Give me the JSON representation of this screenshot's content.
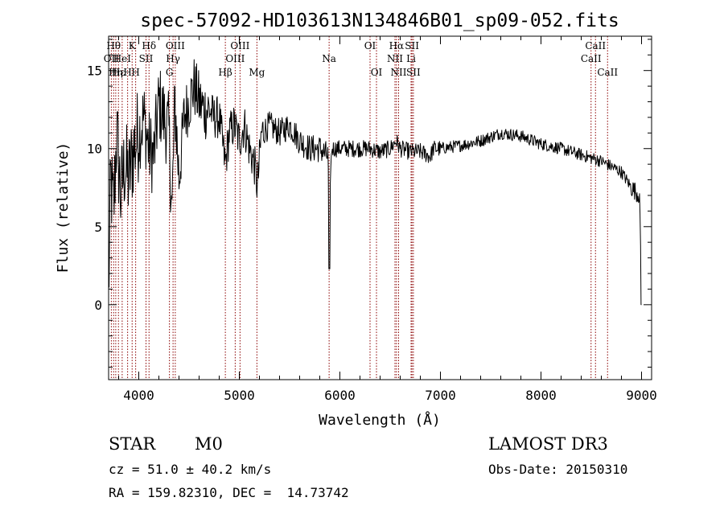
{
  "chart_data": {
    "type": "line",
    "title": "spec-57092-HD103613N134846B01_sp09-052.fits",
    "xlabel": "Wavelength (Å)",
    "ylabel": "Flux (relative)",
    "xlim": [
      3700,
      9100
    ],
    "ylim": [
      -4.8,
      17.2
    ],
    "xticks": [
      4000,
      5000,
      6000,
      7000,
      8000,
      9000
    ],
    "xtick_labels": [
      "4000",
      "5000",
      "6000",
      "7000",
      "8000",
      "9000"
    ],
    "yticks": [
      0,
      5,
      10,
      15
    ],
    "ytick_labels": [
      "0",
      "5",
      "10",
      "15"
    ],
    "grid": false,
    "line_color": "#000000",
    "marker_color": "#8b0000",
    "spectrum_anchors": [
      [
        3700,
        0.5
      ],
      [
        3720,
        8
      ],
      [
        3750,
        6
      ],
      [
        3780,
        11
      ],
      [
        3820,
        7
      ],
      [
        3860,
        9
      ],
      [
        3900,
        8
      ],
      [
        3950,
        10
      ],
      [
        4000,
        11
      ],
      [
        4050,
        12
      ],
      [
        4100,
        10
      ],
      [
        4150,
        9.5
      ],
      [
        4200,
        13
      ],
      [
        4250,
        12
      ],
      [
        4300,
        11
      ],
      [
        4330,
        6
      ],
      [
        4360,
        13
      ],
      [
        4400,
        8
      ],
      [
        4450,
        12
      ],
      [
        4500,
        13
      ],
      [
        4550,
        14
      ],
      [
        4600,
        13
      ],
      [
        4650,
        12.5
      ],
      [
        4700,
        12.5
      ],
      [
        4750,
        12
      ],
      [
        4800,
        12
      ],
      [
        4860,
        9
      ],
      [
        4900,
        11
      ],
      [
        4950,
        11.5
      ],
      [
        5000,
        10.5
      ],
      [
        5050,
        11.5
      ],
      [
        5100,
        10
      ],
      [
        5150,
        9
      ],
      [
        5180,
        7.5
      ],
      [
        5220,
        11
      ],
      [
        5300,
        11.5
      ],
      [
        5400,
        11
      ],
      [
        5500,
        11.5
      ],
      [
        5600,
        10.5
      ],
      [
        5700,
        10
      ],
      [
        5800,
        10
      ],
      [
        5880,
        9.5
      ],
      [
        5895,
        7
      ],
      [
        5920,
        10
      ],
      [
        6000,
        10
      ],
      [
        6100,
        10
      ],
      [
        6200,
        10
      ],
      [
        6300,
        10
      ],
      [
        6400,
        9.8
      ],
      [
        6500,
        10
      ],
      [
        6560,
        10.5
      ],
      [
        6600,
        10
      ],
      [
        6700,
        9.8
      ],
      [
        6800,
        9.8
      ],
      [
        6900,
        9.5
      ],
      [
        6930,
        10
      ],
      [
        7000,
        10
      ],
      [
        7200,
        10.2
      ],
      [
        7400,
        10.5
      ],
      [
        7600,
        11
      ],
      [
        7800,
        10.8
      ],
      [
        8000,
        10.3
      ],
      [
        8200,
        10
      ],
      [
        8400,
        9.6
      ],
      [
        8600,
        9.2
      ],
      [
        8800,
        8.5
      ],
      [
        8900,
        7.5
      ],
      [
        8980,
        7
      ],
      [
        9000,
        0
      ]
    ],
    "line_markers": [
      {
        "wave": 3727,
        "label": "OII",
        "row": 2
      },
      {
        "wave": 3750,
        "label": "Hθ",
        "row": 1
      },
      {
        "wave": 3771,
        "label": "Hη",
        "row": 3
      },
      {
        "wave": 3798,
        "label": "Hε",
        "row": 3
      },
      {
        "wave": 3835,
        "label": "HeI",
        "row": 2
      },
      {
        "wave": 3889,
        "label": "H",
        "row": 3
      },
      {
        "wave": 3934,
        "label": "K",
        "row": 1
      },
      {
        "wave": 3969,
        "label": "H",
        "row": 3
      },
      {
        "wave": 4072,
        "label": "SII",
        "row": 2
      },
      {
        "wave": 4102,
        "label": "Hδ",
        "row": 1
      },
      {
        "wave": 4305,
        "label": "G",
        "row": 3
      },
      {
        "wave": 4341,
        "label": "Hγ",
        "row": 2
      },
      {
        "wave": 4363,
        "label": "OIII",
        "row": 1
      },
      {
        "wave": 4861,
        "label": "Hβ",
        "row": 3
      },
      {
        "wave": 4959,
        "label": "OIII",
        "row": 2
      },
      {
        "wave": 5007,
        "label": "OIII",
        "row": 1
      },
      {
        "wave": 5175,
        "label": "Mg",
        "row": 3
      },
      {
        "wave": 5893,
        "label": "Na",
        "row": 2
      },
      {
        "wave": 6300,
        "label": "OI",
        "row": 1
      },
      {
        "wave": 6364,
        "label": "OI",
        "row": 3
      },
      {
        "wave": 6548,
        "label": "NII",
        "row": 2
      },
      {
        "wave": 6563,
        "label": "Hα",
        "row": 1
      },
      {
        "wave": 6584,
        "label": "NII",
        "row": 3
      },
      {
        "wave": 6708,
        "label": "Li",
        "row": 2
      },
      {
        "wave": 6717,
        "label": "SII",
        "row": 1
      },
      {
        "wave": 6731,
        "label": "SII",
        "row": 3
      },
      {
        "wave": 8498,
        "label": "CaII",
        "row": 2
      },
      {
        "wave": 8542,
        "label": "CaII",
        "row": 1
      },
      {
        "wave": 8662,
        "label": "CaII",
        "row": 3
      }
    ]
  },
  "info": {
    "class": "STAR",
    "subclass": "M0",
    "survey": "LAMOST DR3",
    "cz": "cz = 51.0 ± 40.2 km/s",
    "obs_date": "Obs-Date: 20150310",
    "coords": "RA = 159.82310, DEC =  14.73742"
  }
}
